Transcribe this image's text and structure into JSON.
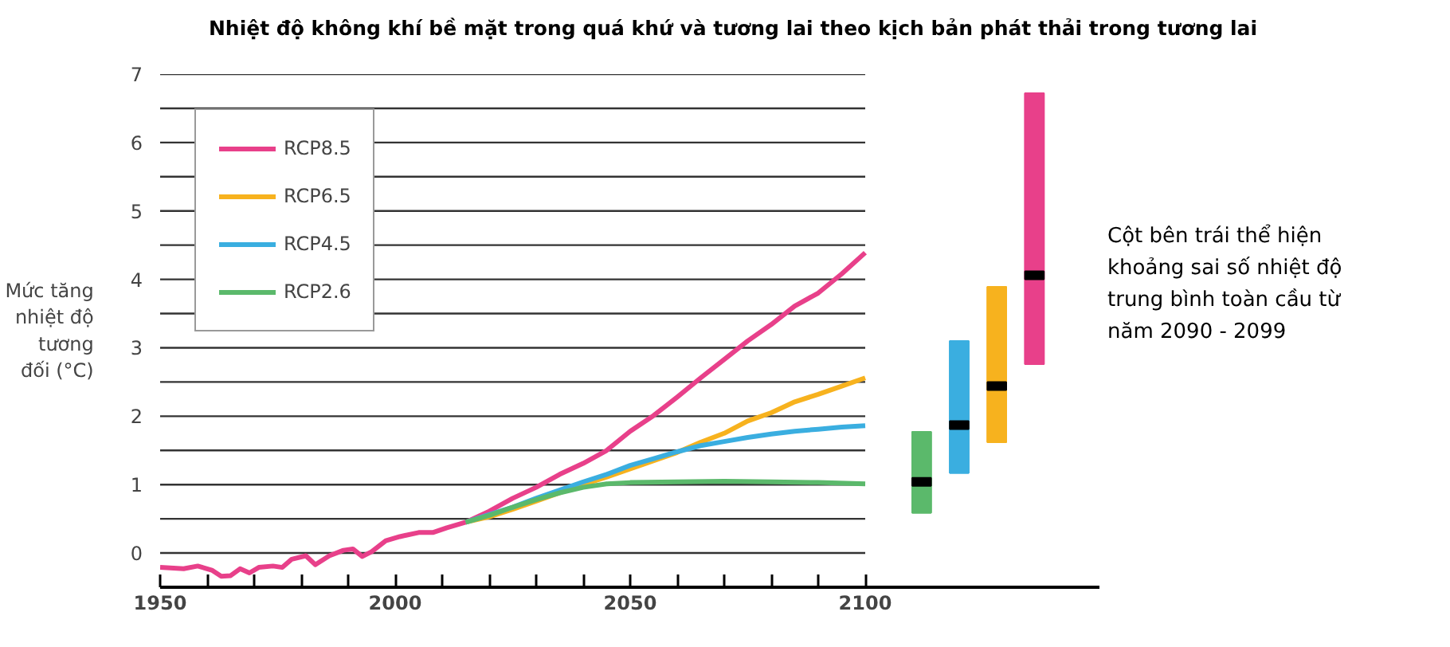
{
  "chart_data": {
    "type": "line",
    "title": "Nhiệt độ không khí bề mặt trong quá khứ và tương lai theo kịch bản phát thải trong tương lai",
    "ylabel": "Mức tăng nhiệt độ tương đối (°C)",
    "xlim": [
      1950,
      2150
    ],
    "xticks": [
      1950,
      {
        "value": 1960,
        "label": null
      },
      {
        "value": 1970,
        "label": null
      },
      {
        "value": 1980,
        "label": null
      },
      {
        "value": 1990,
        "label": null
      },
      2000,
      {
        "value": 2010,
        "label": null
      },
      {
        "value": 2020,
        "label": null
      },
      {
        "value": 2030,
        "label": null
      },
      {
        "value": 2040,
        "label": null
      },
      2050,
      {
        "value": 2060,
        "label": null
      },
      {
        "value": 2070,
        "label": null
      },
      {
        "value": 2080,
        "label": null
      },
      {
        "value": 2090,
        "label": null
      },
      2100
    ],
    "ylim": [
      -0.5,
      7
    ],
    "yticks": [
      0,
      {
        "value": 0.5,
        "label": null
      },
      1,
      {
        "value": 1.5,
        "label": null
      },
      2,
      {
        "value": 2.5,
        "label": null
      },
      3,
      {
        "value": 3.5,
        "label": null
      },
      4,
      {
        "value": 4.5,
        "label": null
      },
      5,
      {
        "value": 5.5,
        "label": null
      },
      6,
      {
        "value": 6.5,
        "label": null
      },
      7
    ],
    "grid": "y",
    "legend": "top left",
    "marker": "none",
    "line_style": "solid",
    "series": [
      {
        "name": "RCP8.5",
        "color": "#e8408a",
        "x": [
          1950,
          1955,
          1958,
          1961,
          1963,
          1965,
          1967,
          1969,
          1971,
          1974,
          1976,
          1978,
          1981,
          1983,
          1986,
          1989,
          1991,
          1993,
          1995,
          1998,
          2001,
          2005,
          2008,
          2011,
          2015,
          2020,
          2025,
          2030,
          2035,
          2040,
          2045,
          2050,
          2055,
          2060,
          2065,
          2070,
          2075,
          2080,
          2085,
          2090,
          2095,
          2100
        ],
        "values": [
          -0.21,
          -0.23,
          -0.19,
          -0.25,
          -0.34,
          -0.33,
          -0.23,
          -0.29,
          -0.21,
          -0.19,
          -0.21,
          -0.09,
          -0.04,
          -0.17,
          -0.04,
          0.04,
          0.06,
          -0.05,
          0.02,
          0.18,
          0.24,
          0.3,
          0.3,
          0.37,
          0.45,
          0.61,
          0.8,
          0.96,
          1.15,
          1.31,
          1.5,
          1.78,
          2.01,
          2.28,
          2.56,
          2.83,
          3.1,
          3.34,
          3.61,
          3.8,
          4.08,
          4.39
        ]
      },
      {
        "name": "RCP6.5",
        "color": "#f7b21e",
        "x": [
          2015,
          2020,
          2025,
          2030,
          2035,
          2040,
          2045,
          2050,
          2055,
          2060,
          2065,
          2070,
          2075,
          2080,
          2085,
          2090,
          2095,
          2100
        ],
        "values": [
          0.45,
          0.53,
          0.64,
          0.76,
          0.88,
          1.0,
          1.11,
          1.23,
          1.35,
          1.47,
          1.62,
          1.75,
          1.93,
          2.05,
          2.21,
          2.32,
          2.44,
          2.56
        ]
      },
      {
        "name": "RCP4.5",
        "color": "#3aaee0",
        "x": [
          2015,
          2020,
          2025,
          2030,
          2035,
          2040,
          2045,
          2050,
          2055,
          2060,
          2065,
          2070,
          2075,
          2080,
          2085,
          2090,
          2095,
          2100
        ],
        "values": [
          0.45,
          0.56,
          0.67,
          0.8,
          0.92,
          1.04,
          1.15,
          1.28,
          1.38,
          1.48,
          1.57,
          1.63,
          1.69,
          1.74,
          1.78,
          1.81,
          1.84,
          1.86
        ]
      },
      {
        "name": "RCP2.6",
        "color": "#5bb96b",
        "x": [
          2015,
          2020,
          2025,
          2030,
          2035,
          2040,
          2045,
          2050,
          2060,
          2070,
          2080,
          2090,
          2100
        ],
        "values": [
          0.45,
          0.55,
          0.67,
          0.78,
          0.88,
          0.96,
          1.01,
          1.03,
          1.04,
          1.05,
          1.04,
          1.03,
          1.01
        ]
      },
      {
        "type": "box",
        "x": [
          2112,
          2120,
          2128,
          2136
        ],
        "colors": [
          "#5bb96b",
          "#3aaee0",
          "#f7b21e",
          "#e8408a"
        ],
        "boxes": [
          {
            "low": 0.59,
            "q1": 0.59,
            "median": 1.04,
            "q3": 1.77,
            "high": 1.77
          },
          {
            "low": 1.17,
            "q1": 1.17,
            "median": 1.87,
            "q3": 3.1,
            "high": 3.1
          },
          {
            "low": 1.62,
            "q1": 1.62,
            "median": 2.44,
            "q3": 3.89,
            "high": 3.89
          },
          {
            "low": 2.76,
            "q1": 2.76,
            "median": 4.06,
            "q3": 6.72,
            "high": 6.72
          }
        ]
      }
    ],
    "annotations": [
      "Cột bên trái thể hiện khoảng sai số nhiệt độ trung bình toàn cầu từ năm 2090 - 2099"
    ]
  }
}
